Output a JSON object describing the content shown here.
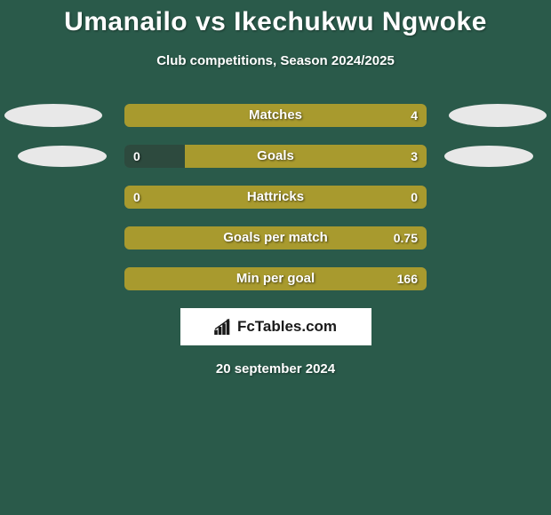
{
  "title": "Umanailo vs Ikechukwu Ngwoke",
  "subtitle": "Club competitions, Season 2024/2025",
  "date": "20 september 2024",
  "brand": "FcTables.com",
  "palette": {
    "background": "#2a5a4a",
    "bar_bg": "#3a6a5a",
    "fill_olive": "#a89a2e",
    "fill_dark": "#2d4a3e",
    "avatar": "#e8e8e8",
    "text": "#ffffff",
    "brand_bg": "#ffffff",
    "brand_text": "#1a1a1a"
  },
  "rows": [
    {
      "label": "Matches",
      "left_value": "",
      "right_value": "4",
      "left_fill_pct": 0,
      "right_fill_pct": 100,
      "fill_color": "#a89a2e",
      "show_avatars": true,
      "avatar_size": "normal"
    },
    {
      "label": "Goals",
      "left_value": "0",
      "right_value": "3",
      "left_fill_pct": 20,
      "right_fill_pct": 80,
      "fill_color_left": "#2d4a3e",
      "fill_color_right": "#a89a2e",
      "show_avatars": true,
      "avatar_size": "small"
    },
    {
      "label": "Hattricks",
      "left_value": "0",
      "right_value": "0",
      "left_fill_pct": 100,
      "right_fill_pct": 0,
      "fill_color": "#a89a2e",
      "show_avatars": false
    },
    {
      "label": "Goals per match",
      "left_value": "",
      "right_value": "0.75",
      "left_fill_pct": 0,
      "right_fill_pct": 100,
      "fill_color": "#a89a2e",
      "show_avatars": false
    },
    {
      "label": "Min per goal",
      "left_value": "",
      "right_value": "166",
      "left_fill_pct": 0,
      "right_fill_pct": 100,
      "fill_color": "#a89a2e",
      "show_avatars": false
    }
  ]
}
